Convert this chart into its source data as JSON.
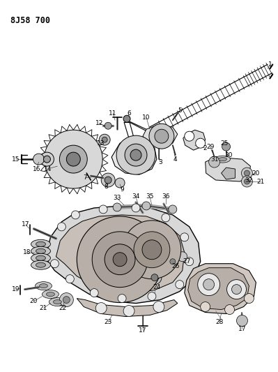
{
  "title": "8J58 700",
  "bg_color": "#ffffff",
  "lc": "#000000",
  "fig_width": 3.99,
  "fig_height": 5.33,
  "dpi": 100,
  "title_fontsize": 8.5,
  "label_fontsize": 6.5
}
